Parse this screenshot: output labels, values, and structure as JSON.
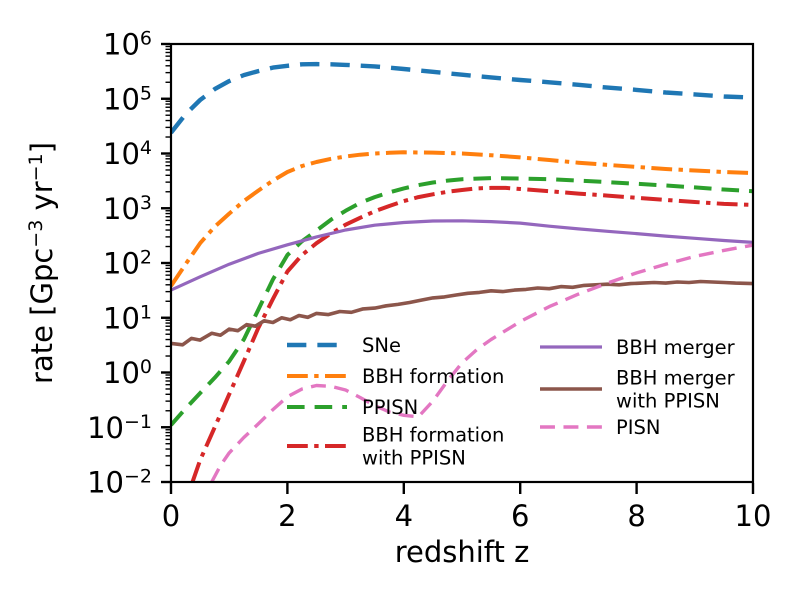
{
  "chart_data": {
    "type": "line",
    "title": "",
    "xlabel": "redshift z",
    "ylabel": "rate [Gpc⁻³ yr⁻¹]",
    "ylabel_parts": [
      {
        "t": "rate [Gpc",
        "sup": false
      },
      {
        "t": "−3",
        "sup": true
      },
      {
        "t": " yr",
        "sup": false
      },
      {
        "t": "−1",
        "sup": true
      },
      {
        "t": "]",
        "sup": false
      }
    ],
    "x_range": [
      0,
      10
    ],
    "y_scale": "log",
    "y_range": [
      0.01,
      1000000
    ],
    "x_ticks": [
      0,
      2,
      4,
      6,
      8,
      10
    ],
    "x_tick_labels": [
      "0",
      "2",
      "4",
      "6",
      "8",
      "10"
    ],
    "y_tick_base": "10",
    "y_tick_exponents": [
      "−2",
      "−1",
      "0",
      "1",
      "2",
      "3",
      "4",
      "5",
      "6"
    ],
    "y_tick_exponent_values": [
      -2,
      -1,
      0,
      1,
      2,
      3,
      4,
      5,
      6
    ],
    "grid": false,
    "legend": {
      "frame": false,
      "position": "lower center inside axes",
      "columns": [
        [
          "SNe",
          "BBH formation",
          "PPISN",
          "BBH formation\nwith PPISN"
        ],
        [
          "BBH merger",
          "BBH merger\nwith PPISN",
          "PISN"
        ]
      ]
    },
    "series": [
      {
        "name": "SNe",
        "label_lines": [
          "SNe"
        ],
        "color": "#1f77b4",
        "style": "dashed",
        "width": 4.4,
        "legend_column": 0,
        "points": [
          [
            0,
            24000
          ],
          [
            0.25,
            52000
          ],
          [
            0.5,
            95000
          ],
          [
            0.75,
            150000
          ],
          [
            1,
            210000
          ],
          [
            1.25,
            270000
          ],
          [
            1.5,
            320000
          ],
          [
            1.75,
            370000
          ],
          [
            2,
            400000
          ],
          [
            2.25,
            425000
          ],
          [
            2.5,
            430000
          ],
          [
            2.75,
            425000
          ],
          [
            3,
            415000
          ],
          [
            3.5,
            390000
          ],
          [
            4,
            350000
          ],
          [
            4.5,
            310000
          ],
          [
            5,
            275000
          ],
          [
            5.5,
            245000
          ],
          [
            6,
            220000
          ],
          [
            6.5,
            200000
          ],
          [
            7,
            180000
          ],
          [
            7.5,
            160000
          ],
          [
            8,
            145000
          ],
          [
            8.5,
            130000
          ],
          [
            9,
            120000
          ],
          [
            9.5,
            110000
          ],
          [
            10,
            105000
          ]
        ]
      },
      {
        "name": "BBH formation",
        "label_lines": [
          "BBH formation"
        ],
        "color": "#ff7f0e",
        "style": "dashdot",
        "width": 4.0,
        "legend_column": 0,
        "points": [
          [
            0,
            38
          ],
          [
            0.25,
            95
          ],
          [
            0.5,
            230
          ],
          [
            0.75,
            460
          ],
          [
            1,
            800
          ],
          [
            1.25,
            1350
          ],
          [
            1.5,
            2100
          ],
          [
            1.75,
            3200
          ],
          [
            2,
            4600
          ],
          [
            2.25,
            5900
          ],
          [
            2.5,
            7000
          ],
          [
            2.75,
            8000
          ],
          [
            3,
            8800
          ],
          [
            3.25,
            9500
          ],
          [
            3.5,
            10000
          ],
          [
            3.75,
            10300
          ],
          [
            4,
            10500
          ],
          [
            4.5,
            10400
          ],
          [
            5,
            10000
          ],
          [
            5.5,
            9300
          ],
          [
            6,
            8500
          ],
          [
            6.5,
            7600
          ],
          [
            7,
            6800
          ],
          [
            7.5,
            6200
          ],
          [
            8,
            5700
          ],
          [
            8.5,
            5200
          ],
          [
            9,
            4900
          ],
          [
            9.5,
            4600
          ],
          [
            10,
            4400
          ]
        ]
      },
      {
        "name": "PPISN",
        "label_lines": [
          "PPISN"
        ],
        "color": "#2ca02c",
        "style": "dashed",
        "width": 4.0,
        "legend_column": 0,
        "points": [
          [
            0,
            0.11
          ],
          [
            0.25,
            0.22
          ],
          [
            0.5,
            0.42
          ],
          [
            0.75,
            0.8
          ],
          [
            1,
            1.6
          ],
          [
            1.25,
            4
          ],
          [
            1.5,
            14
          ],
          [
            1.75,
            50
          ],
          [
            2,
            140
          ],
          [
            2.25,
            250
          ],
          [
            2.5,
            390
          ],
          [
            2.75,
            620
          ],
          [
            3,
            900
          ],
          [
            3.25,
            1250
          ],
          [
            3.5,
            1600
          ],
          [
            3.75,
            1950
          ],
          [
            4,
            2300
          ],
          [
            4.25,
            2650
          ],
          [
            4.5,
            2950
          ],
          [
            4.75,
            3200
          ],
          [
            5,
            3400
          ],
          [
            5.5,
            3550
          ],
          [
            6,
            3500
          ],
          [
            6.5,
            3400
          ],
          [
            7,
            3200
          ],
          [
            7.5,
            3000
          ],
          [
            8,
            2800
          ],
          [
            8.5,
            2600
          ],
          [
            9,
            2400
          ],
          [
            9.5,
            2200
          ],
          [
            10,
            2050
          ]
        ]
      },
      {
        "name": "BBH formation with PPISN",
        "label_lines": [
          "BBH formation",
          "with PPISN"
        ],
        "color": "#d62728",
        "style": "dashdot",
        "width": 4.0,
        "legend_column": 0,
        "points": [
          [
            0.37,
            0.01
          ],
          [
            0.5,
            0.025
          ],
          [
            0.75,
            0.1
          ],
          [
            1,
            0.4
          ],
          [
            1.25,
            1.6
          ],
          [
            1.5,
            6.5
          ],
          [
            1.75,
            22
          ],
          [
            2,
            70
          ],
          [
            2.25,
            140
          ],
          [
            2.5,
            230
          ],
          [
            2.75,
            350
          ],
          [
            3,
            500
          ],
          [
            3.25,
            670
          ],
          [
            3.5,
            880
          ],
          [
            3.75,
            1100
          ],
          [
            4,
            1350
          ],
          [
            4.25,
            1600
          ],
          [
            4.5,
            1800
          ],
          [
            4.75,
            2000
          ],
          [
            5,
            2150
          ],
          [
            5.25,
            2300
          ],
          [
            5.5,
            2350
          ],
          [
            5.75,
            2350
          ],
          [
            6,
            2250
          ],
          [
            6.5,
            2050
          ],
          [
            7,
            1850
          ],
          [
            7.5,
            1700
          ],
          [
            8,
            1550
          ],
          [
            8.5,
            1420
          ],
          [
            9,
            1300
          ],
          [
            9.5,
            1200
          ],
          [
            10,
            1150
          ]
        ]
      },
      {
        "name": "BBH merger",
        "label_lines": [
          "BBH merger"
        ],
        "color": "#9467bd",
        "style": "solid",
        "width": 3.2,
        "legend_column": 1,
        "points": [
          [
            0,
            32
          ],
          [
            0.5,
            56
          ],
          [
            1,
            95
          ],
          [
            1.5,
            150
          ],
          [
            2,
            215
          ],
          [
            2.5,
            300
          ],
          [
            3,
            400
          ],
          [
            3.5,
            490
          ],
          [
            4,
            550
          ],
          [
            4.5,
            585
          ],
          [
            5,
            590
          ],
          [
            5.5,
            570
          ],
          [
            6,
            535
          ],
          [
            6.5,
            470
          ],
          [
            7,
            420
          ],
          [
            7.5,
            380
          ],
          [
            8,
            345
          ],
          [
            8.5,
            310
          ],
          [
            9,
            282
          ],
          [
            9.5,
            258
          ],
          [
            10,
            238
          ]
        ]
      },
      {
        "name": "BBH merger with PPISN",
        "label_lines": [
          "BBH merger",
          "with PPISN"
        ],
        "color": "#8c564b",
        "style": "solid",
        "width": 3.6,
        "legend_column": 1,
        "points": [
          [
            0,
            3.4
          ],
          [
            0.2,
            3.2
          ],
          [
            0.35,
            4.2
          ],
          [
            0.5,
            3.9
          ],
          [
            0.7,
            5.2
          ],
          [
            0.85,
            4.8
          ],
          [
            1,
            6.2
          ],
          [
            1.15,
            5.8
          ],
          [
            1.3,
            7.5
          ],
          [
            1.45,
            7.0
          ],
          [
            1.6,
            8.8
          ],
          [
            1.75,
            8.2
          ],
          [
            1.9,
            10
          ],
          [
            2.05,
            9.2
          ],
          [
            2.2,
            11
          ],
          [
            2.35,
            10.2
          ],
          [
            2.5,
            12
          ],
          [
            2.7,
            11.4
          ],
          [
            2.9,
            13
          ],
          [
            3.1,
            12.6
          ],
          [
            3.3,
            14.5
          ],
          [
            3.5,
            15
          ],
          [
            3.7,
            16.5
          ],
          [
            3.9,
            17.5
          ],
          [
            4.1,
            19
          ],
          [
            4.3,
            21
          ],
          [
            4.5,
            23
          ],
          [
            4.7,
            24
          ],
          [
            4.9,
            26
          ],
          [
            5.1,
            28
          ],
          [
            5.3,
            29
          ],
          [
            5.5,
            31
          ],
          [
            5.7,
            30
          ],
          [
            5.9,
            32
          ],
          [
            6.1,
            33
          ],
          [
            6.3,
            35
          ],
          [
            6.5,
            34
          ],
          [
            6.7,
            37
          ],
          [
            6.9,
            36
          ],
          [
            7.1,
            39
          ],
          [
            7.3,
            40
          ],
          [
            7.5,
            41
          ],
          [
            7.7,
            40
          ],
          [
            7.9,
            42
          ],
          [
            8.1,
            43
          ],
          [
            8.3,
            44
          ],
          [
            8.5,
            43
          ],
          [
            8.7,
            45
          ],
          [
            8.9,
            44
          ],
          [
            9.1,
            46
          ],
          [
            9.3,
            45
          ],
          [
            9.5,
            44
          ],
          [
            9.7,
            43
          ],
          [
            10,
            42
          ]
        ]
      },
      {
        "name": "PISN",
        "label_lines": [
          "PISN"
        ],
        "color": "#e377c2",
        "style": "dashed",
        "width": 3.4,
        "legend_column": 1,
        "points": [
          [
            0.7,
            0.01
          ],
          [
            0.85,
            0.02
          ],
          [
            1,
            0.034
          ],
          [
            1.25,
            0.065
          ],
          [
            1.5,
            0.115
          ],
          [
            1.75,
            0.21
          ],
          [
            2,
            0.36
          ],
          [
            2.25,
            0.5
          ],
          [
            2.5,
            0.58
          ],
          [
            2.75,
            0.56
          ],
          [
            3,
            0.48
          ],
          [
            3.25,
            0.35
          ],
          [
            3.5,
            0.25
          ],
          [
            3.75,
            0.19
          ],
          [
            4,
            0.165
          ],
          [
            4.25,
            0.155
          ],
          [
            4.5,
            0.3
          ],
          [
            4.75,
            0.7
          ],
          [
            5,
            1.5
          ],
          [
            5.25,
            2.6
          ],
          [
            5.5,
            4
          ],
          [
            6,
            8.5
          ],
          [
            6.5,
            16
          ],
          [
            7,
            27
          ],
          [
            7.5,
            43
          ],
          [
            8,
            66
          ],
          [
            8.5,
            95
          ],
          [
            9,
            132
          ],
          [
            9.5,
            170
          ],
          [
            10,
            212
          ]
        ]
      }
    ]
  }
}
